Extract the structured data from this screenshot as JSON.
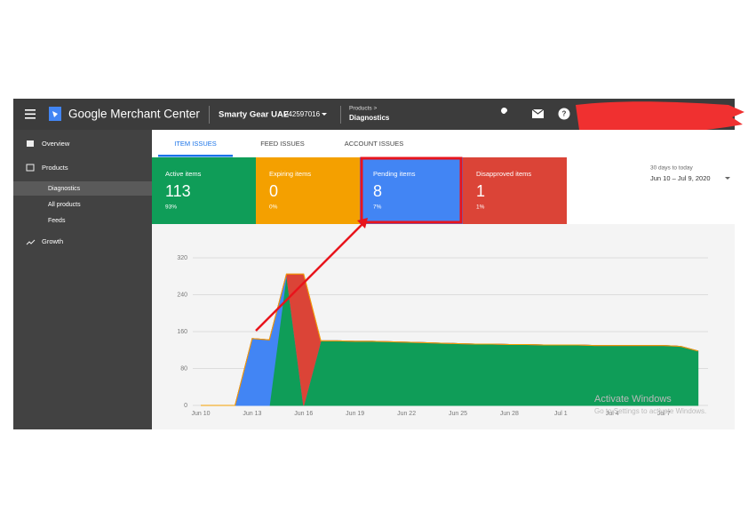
{
  "header": {
    "app_name": "Google Merchant Center",
    "account_name": "Smarty Gear UAE",
    "account_id": "242597016",
    "breadcrumb": "Products >",
    "page_title": "Diagnostics"
  },
  "sidebar": {
    "items": [
      "Overview",
      "Products",
      "Diagnostics",
      "All products",
      "Feeds",
      "Growth"
    ]
  },
  "tabs": [
    "ITEM ISSUES",
    "FEED ISSUES",
    "ACCOUNT ISSUES"
  ],
  "cards": [
    {
      "label": "Active items",
      "value": "113",
      "percent": "93%"
    },
    {
      "label": "Expiring items",
      "value": "0",
      "percent": "0%"
    },
    {
      "label": "Pending items",
      "value": "8",
      "percent": "7%"
    },
    {
      "label": "Disapproved items",
      "value": "1",
      "percent": "1%"
    }
  ],
  "date_range": {
    "caption": "30 days to today",
    "range": "Jun 10 – Jul 9, 2020"
  },
  "watermark": {
    "title": "Activate Windows",
    "subtitle": "Go to Settings to activate Windows."
  },
  "chart_data": {
    "type": "stacked_area",
    "categories": [
      "Jun 10",
      null,
      null,
      "Jun 13",
      null,
      null,
      "Jun 16",
      null,
      null,
      "Jun 19",
      null,
      null,
      "Jun 22",
      null,
      null,
      "Jun 25",
      null,
      null,
      "Jun 28",
      null,
      null,
      "Jul 1",
      null,
      null,
      "Jul 4",
      null,
      null,
      "Jul 7",
      null,
      null
    ],
    "series": [
      {
        "name": "Active items",
        "color": "#0f9d58",
        "values": [
          0,
          0,
          0,
          0,
          0,
          285,
          0,
          140,
          140,
          139,
          139,
          138,
          137,
          136,
          135,
          134,
          133,
          133,
          132,
          132,
          131,
          131,
          131,
          130,
          130,
          130,
          130,
          130,
          128,
          118
        ]
      },
      {
        "name": "Pending items",
        "color": "#4285f4",
        "values": [
          0,
          0,
          0,
          145,
          142,
          0,
          0,
          0,
          0,
          0,
          0,
          0,
          0,
          0,
          0,
          0,
          0,
          0,
          0,
          0,
          0,
          0,
          0,
          0,
          0,
          0,
          0,
          0,
          0,
          0
        ]
      },
      {
        "name": "Disapproved items",
        "color": "#db4437",
        "values": [
          0,
          0,
          0,
          0,
          0,
          0,
          285,
          0,
          0,
          0,
          0,
          0,
          0,
          0,
          0,
          0,
          0,
          0,
          0,
          0,
          0,
          0,
          0,
          0,
          0,
          0,
          0,
          0,
          0,
          0
        ]
      },
      {
        "name": "Expiring items",
        "color": "#f4a000",
        "values": [
          0,
          0,
          0,
          0,
          0,
          0,
          0,
          0,
          0,
          0,
          0,
          0,
          0,
          0,
          0,
          0,
          0,
          0,
          0,
          0,
          0,
          0,
          0,
          0,
          0,
          0,
          0,
          0,
          0,
          0
        ]
      }
    ],
    "ylim": [
      0,
      320
    ],
    "yticks": [
      0,
      80,
      160,
      240,
      320
    ],
    "grid": true
  }
}
